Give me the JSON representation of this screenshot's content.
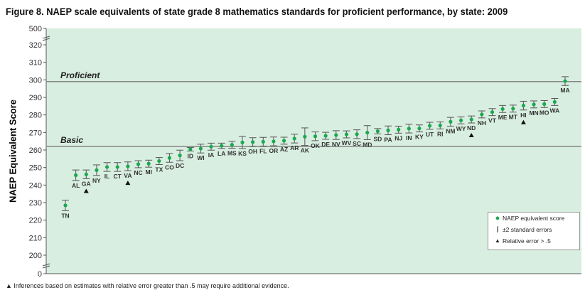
{
  "chart_data": {
    "type": "scatter",
    "title": "Figure 8.  NAEP scale equivalents of state grade 8 mathematics standards for proficient performance, by state: 2009",
    "ylabel": "NAEP Equivalent Score",
    "yticks": [
      0,
      200,
      210,
      220,
      230,
      240,
      250,
      260,
      270,
      280,
      290,
      300,
      310,
      320,
      500
    ],
    "ylim": [
      200,
      320
    ],
    "axis_breaks": true,
    "reference_lines": [
      {
        "label": "Proficient",
        "value": 299
      },
      {
        "label": "Basic",
        "value": 262
      }
    ],
    "states": [
      "TN",
      "AL",
      "GA",
      "NY",
      "IL",
      "CT",
      "VA",
      "NC",
      "MI",
      "TX",
      "CO",
      "DC",
      "ID",
      "WI",
      "IA",
      "LA",
      "MS",
      "KS",
      "OH",
      "FL",
      "OR",
      "AZ",
      "AR",
      "AK",
      "OK",
      "DE",
      "NV",
      "WV",
      "SC",
      "MD",
      "SD",
      "PA",
      "NJ",
      "IN",
      "KY",
      "UT",
      "RI",
      "NM",
      "WY",
      "ND",
      "NH",
      "VT",
      "ME",
      "MT",
      "HI",
      "MN",
      "MO",
      "WA",
      "MA"
    ],
    "values": [
      228.4,
      245.6,
      246.1,
      248.5,
      250.3,
      250.3,
      250.7,
      251.9,
      252.2,
      253.7,
      255.5,
      256.9,
      260.4,
      260.8,
      261.9,
      262.4,
      263,
      264.3,
      264.5,
      264.7,
      264.9,
      265.3,
      266.5,
      267.6,
      267.8,
      268.1,
      268.5,
      268.9,
      269,
      269.9,
      270.7,
      271.2,
      271.6,
      272.2,
      272.3,
      273.8,
      274,
      276.1,
      276.9,
      277.4,
      280.3,
      281.6,
      283.4,
      283.6,
      285.3,
      286,
      286.2,
      287.4,
      299.3
    ],
    "two_se": [
      3,
      3,
      2.5,
      3,
      2.5,
      2.5,
      2.5,
      2,
      2,
      2,
      2.5,
      3,
      1,
      2.5,
      2,
      1.5,
      2,
      3.5,
      2.5,
      2.5,
      2.5,
      2,
      2.5,
      5,
      2.5,
      2,
      2.5,
      2,
      2.5,
      4,
      1.5,
      2.5,
      2,
      2.5,
      2,
      2,
      2,
      2.5,
      2,
      2,
      2,
      2,
      2,
      2,
      2.5,
      2,
      2,
      2,
      2.5
    ],
    "relative_error_flag": [
      "GA",
      "VA",
      "ND",
      "HI"
    ],
    "colors": {
      "background": "#d8eee0",
      "point": "#1aa84f",
      "line": "#888888"
    },
    "legend": {
      "placement": "bottom-right",
      "items": [
        "NAEP equivalent score",
        "±2  standard errors",
        "Relative error > .5"
      ]
    }
  },
  "footnote": "▲ Inferences based on estimates with relative error greater than .5 may require additional evidence."
}
